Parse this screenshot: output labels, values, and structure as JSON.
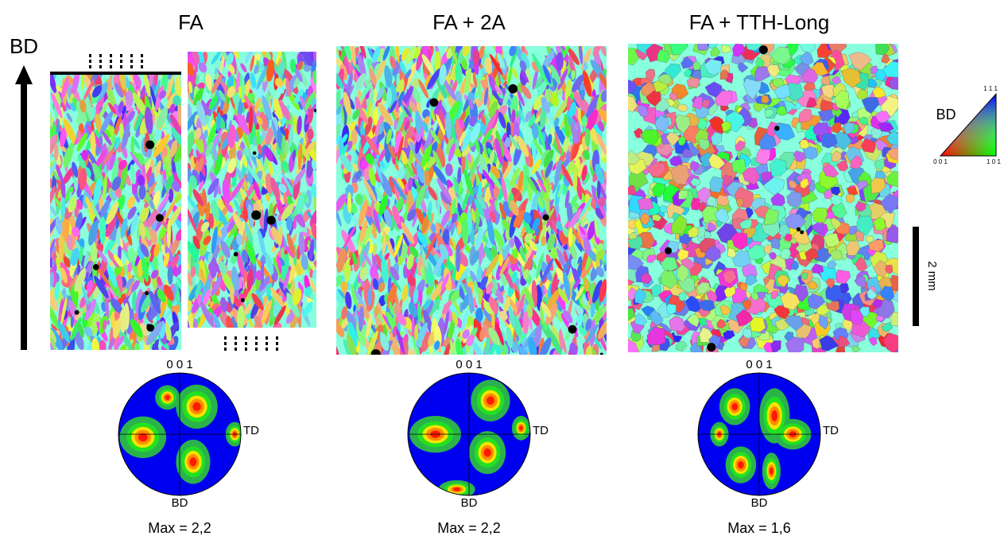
{
  "build_direction": "BD",
  "panels": [
    {
      "title": "FA",
      "pole_figure": {
        "top": "0 0 1",
        "right": "TD",
        "bottom": "BD",
        "max": "Max = 2,2"
      }
    },
    {
      "title": "FA + 2A",
      "pole_figure": {
        "top": "0 0 1",
        "right": "TD",
        "bottom": "BD",
        "max": "Max = 2,2"
      }
    },
    {
      "title": "FA + TTH-Long",
      "pole_figure": {
        "top": "0 0 1",
        "right": "TD",
        "bottom": "BD",
        "max": "Max = 1,6"
      }
    }
  ],
  "ipf_legend": {
    "label": "BD",
    "corner_001": "0 0 1",
    "corner_101": "1 0 1",
    "corner_111": "1 1 1"
  },
  "scale_bar": "2 mm"
}
